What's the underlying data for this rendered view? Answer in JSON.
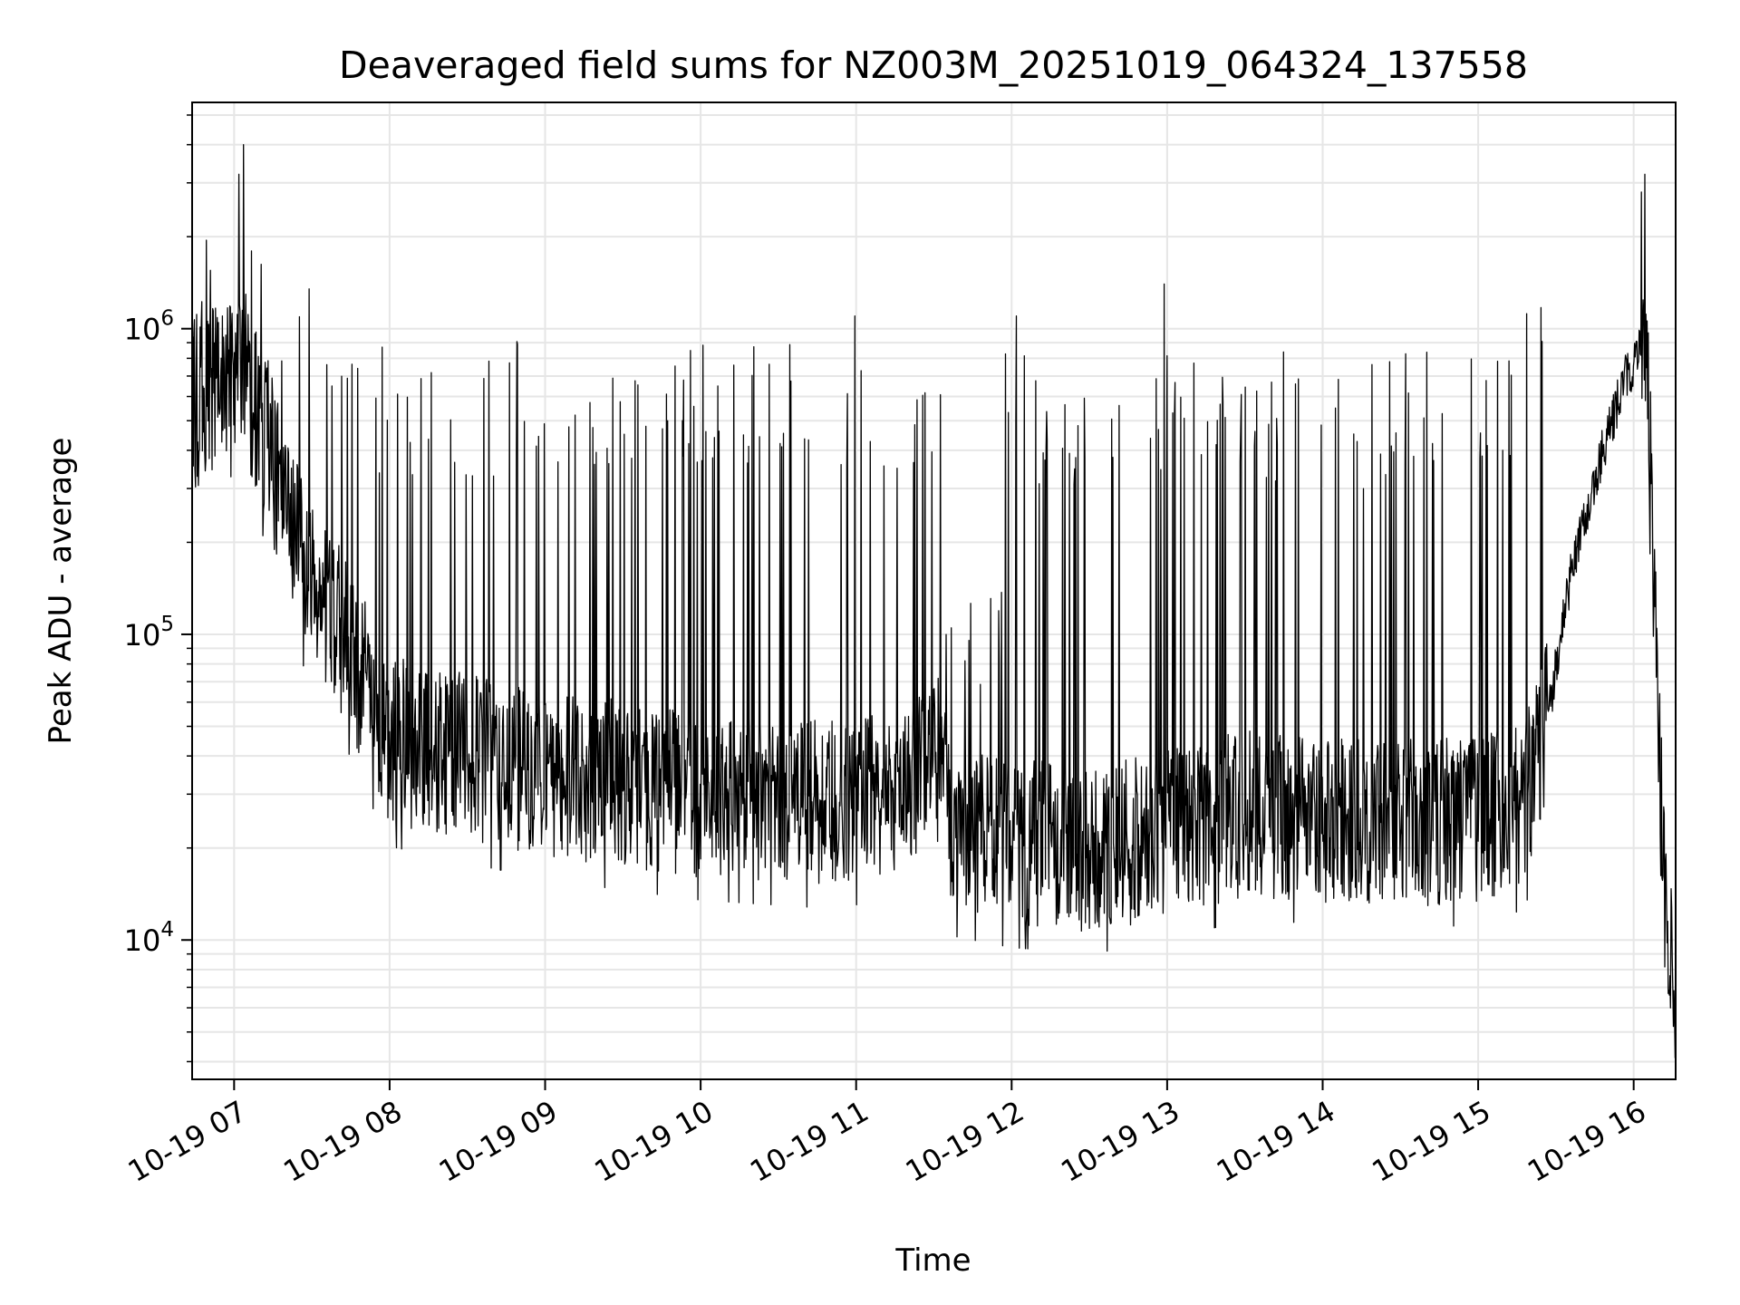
{
  "chart_data": {
    "type": "line",
    "title": "Deaveraged field sums for NZ003M_20251019_064324_137558",
    "xlabel": "Time",
    "ylabel": "Peak ADU - average",
    "yscale": "log",
    "ylim": [
      3500,
      5500000
    ],
    "xlim_hours": [
      6.73,
      16.27
    ],
    "grid": true,
    "line_color": "#000000",
    "grid_color": "#e6e6e6",
    "x_ticks": [
      {
        "hour": 7,
        "label": "10-19 07"
      },
      {
        "hour": 8,
        "label": "10-19 08"
      },
      {
        "hour": 9,
        "label": "10-19 09"
      },
      {
        "hour": 10,
        "label": "10-19 10"
      },
      {
        "hour": 11,
        "label": "10-19 11"
      },
      {
        "hour": 12,
        "label": "10-19 12"
      },
      {
        "hour": 13,
        "label": "10-19 13"
      },
      {
        "hour": 14,
        "label": "10-19 14"
      },
      {
        "hour": 15,
        "label": "10-19 15"
      },
      {
        "hour": 16,
        "label": "10-19 16"
      }
    ],
    "y_ticks": [
      {
        "value": 10000,
        "base": "10",
        "exp": "4"
      },
      {
        "value": 100000,
        "base": "10",
        "exp": "5"
      },
      {
        "value": 1000000,
        "base": "10",
        "exp": "6"
      }
    ],
    "series": [
      {
        "name": "field sum",
        "profile_hours": [
          6.73,
          6.9,
          7.0,
          7.2,
          7.4,
          7.55,
          7.7,
          8.0,
          9.0,
          10.0,
          10.9,
          11.3,
          11.55,
          11.6,
          12.0,
          12.5,
          13.0,
          13.5,
          14.0,
          14.5,
          15.0,
          15.3,
          15.45,
          15.6,
          15.8,
          15.95,
          16.05,
          16.1,
          16.15,
          16.2,
          16.27
        ],
        "baseline_values": [
          550000,
          650000,
          750000,
          450000,
          200000,
          130000,
          100000,
          45000,
          35000,
          30000,
          28000,
          32000,
          40000,
          23000,
          21000,
          20000,
          22000,
          26000,
          25000,
          24000,
          25000,
          28000,
          55000,
          160000,
          400000,
          700000,
          850000,
          500000,
          60000,
          14000,
          6000
        ],
        "spike_tops_hours": [
          7.03,
          7.06,
          10.99,
          12.03,
          12.98,
          16.05,
          16.07
        ],
        "spike_tops_values": [
          3200000,
          4000000,
          1100000,
          1100000,
          1400000,
          2800000,
          3200000
        ]
      }
    ]
  }
}
